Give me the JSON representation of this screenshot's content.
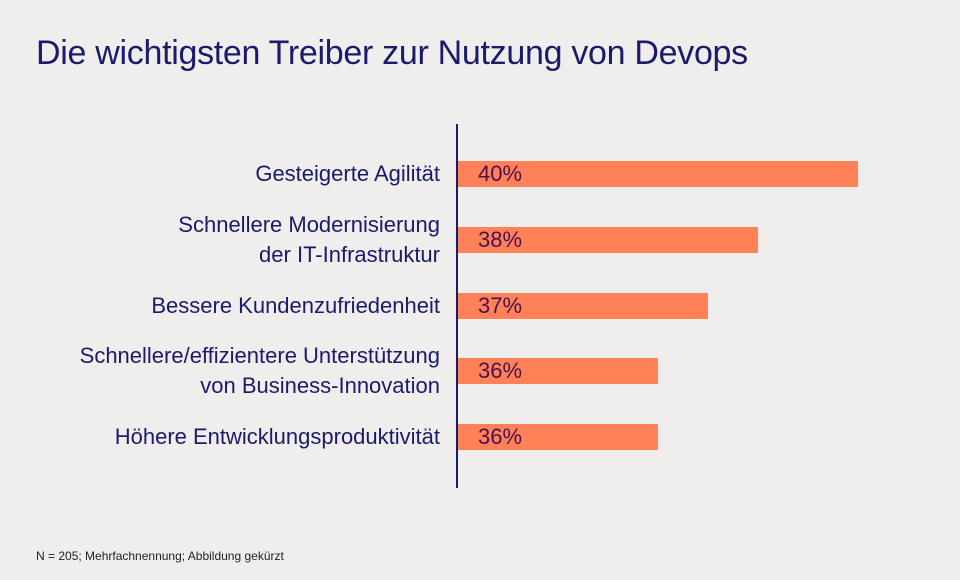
{
  "chart_data": {
    "type": "bar",
    "orientation": "horizontal",
    "title": "Die wichtigsten Treiber zur Nutzung von Devops",
    "categories": [
      "Gesteigerte Agilität",
      "Schnellere Modernisierung\nder IT-Infrastruktur",
      "Bessere Kundenzufriedenheit",
      "Schnellere/effizientere Unterstützung\nvon Business-Innovation",
      "Höhere Entwicklungsproduktivität"
    ],
    "values": [
      40,
      38,
      37,
      36,
      36
    ],
    "value_labels": [
      "40%",
      "38%",
      "37%",
      "36%",
      "36%"
    ],
    "xlim": [
      32,
      41
    ],
    "bar_color": "#ff8158",
    "footnote": "N = 205; Mehrfachnennung; Abbildung gekürzt"
  }
}
